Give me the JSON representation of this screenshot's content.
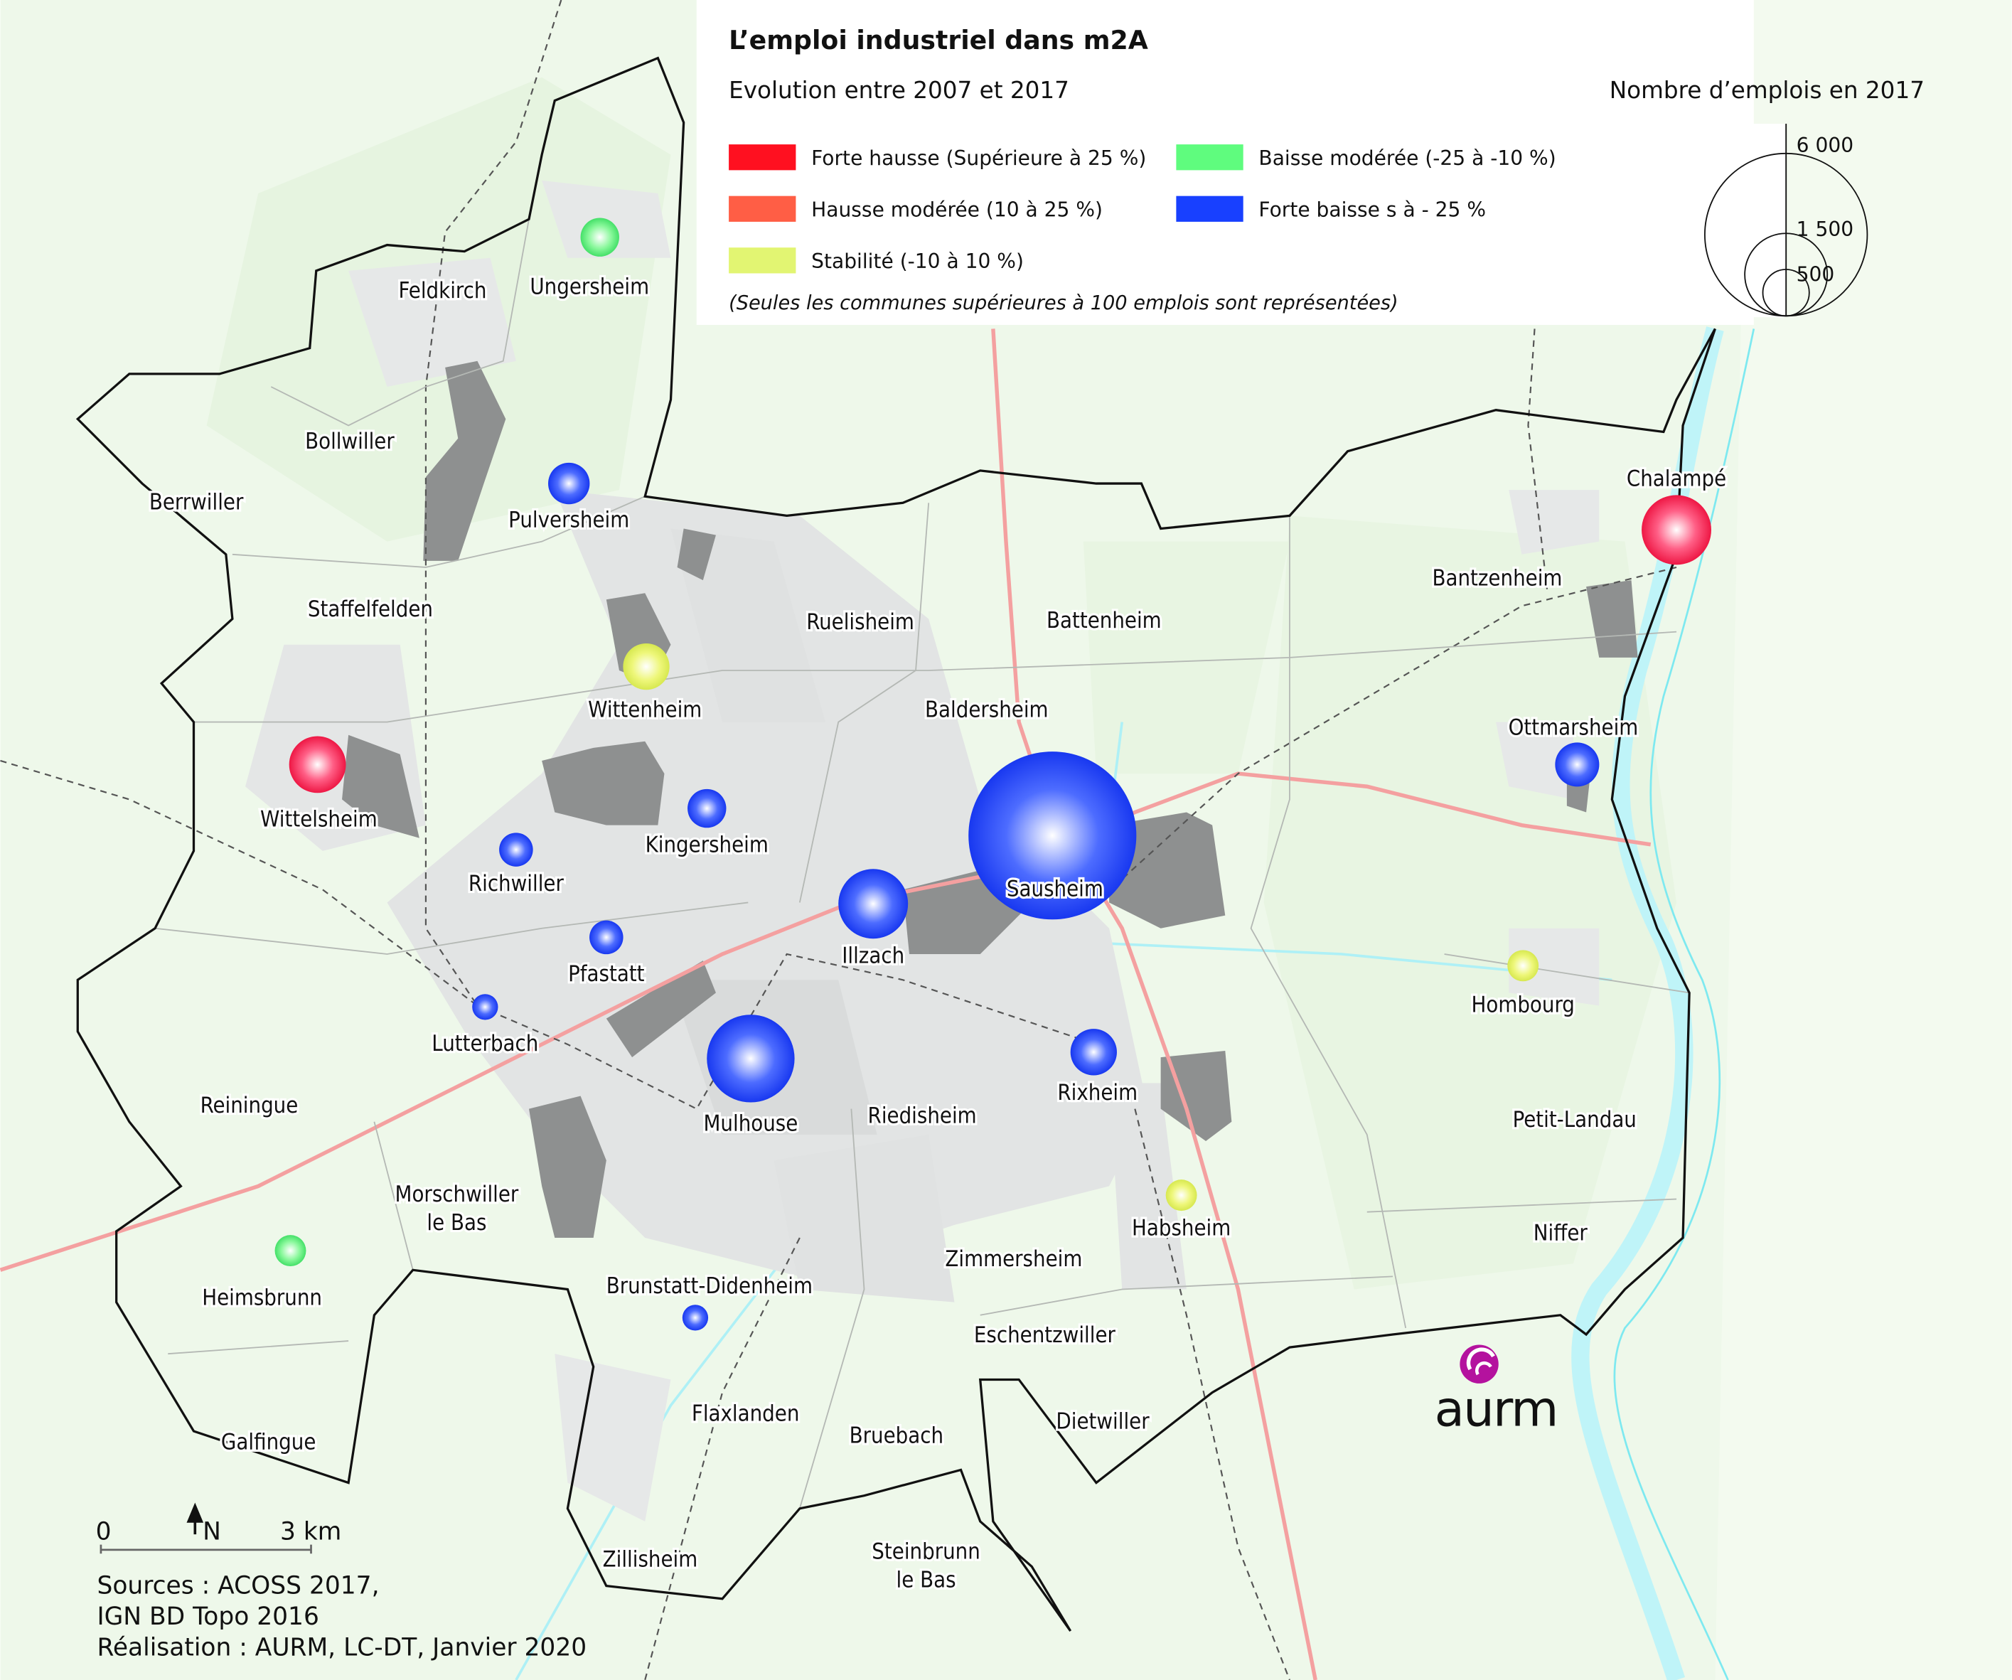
{
  "title": "L’emploi industriel dans m2A",
  "legend": {
    "color_title": "Evolution entre 2007 et 2017",
    "size_title": "Nombre d’emplois en 2017",
    "classes": [
      {
        "key": "forte_hausse",
        "label": "Forte hausse (Supérieure à 25 %)",
        "color": "#ff1020"
      },
      {
        "key": "hausse_moderee",
        "label": "Hausse modérée (10 à 25 %)",
        "color": "#ff5e45"
      },
      {
        "key": "stabilite",
        "label": "Stabilité (-10 à 10 %)",
        "color": "#e2f572"
      },
      {
        "key": "baisse_moderee",
        "label": "Baisse modérée (-25 à -10 %)",
        "color": "#5ffc7e"
      },
      {
        "key": "forte_baisse",
        "label": "Forte baisse s à - 25 %",
        "color": "#1840ff"
      }
    ],
    "note": "(Seules les communes supérieures à 100 emplois sont représentées)",
    "size_values": [
      "6 000",
      "1 500",
      "500"
    ]
  },
  "bubbles": [
    {
      "name": "Sausheim",
      "emplois": 6400,
      "class": "forte_baisse"
    },
    {
      "name": "Mulhouse",
      "emplois": 1750,
      "class": "forte_baisse"
    },
    {
      "name": "Illzach",
      "emplois": 1100,
      "class": "forte_baisse"
    },
    {
      "name": "Chalampé",
      "emplois": 1100,
      "class": "forte_hausse"
    },
    {
      "name": "Wittelsheim",
      "emplois": 730,
      "class": "forte_hausse"
    },
    {
      "name": "Wittenheim",
      "emplois": 490,
      "class": "stabilite"
    },
    {
      "name": "Rixheim",
      "emplois": 490,
      "class": "forte_baisse"
    },
    {
      "name": "Ottmarsheim",
      "emplois": 440,
      "class": "forte_baisse"
    },
    {
      "name": "Pulversheim",
      "emplois": 390,
      "class": "forte_baisse"
    },
    {
      "name": "Kingersheim",
      "emplois": 340,
      "class": "forte_baisse"
    },
    {
      "name": "Ungersheim",
      "emplois": 340,
      "class": "baisse_moderee"
    },
    {
      "name": "Richwiller",
      "emplois": 260,
      "class": "forte_baisse"
    },
    {
      "name": "Pfastatt",
      "emplois": 260,
      "class": "forte_baisse"
    },
    {
      "name": "Heimsbrunn",
      "emplois": 220,
      "class": "baisse_moderee"
    },
    {
      "name": "Hombourg",
      "emplois": 220,
      "class": "stabilite"
    },
    {
      "name": "Habsheim",
      "emplois": 220,
      "class": "stabilite"
    },
    {
      "name": "Lutterbach",
      "emplois": 150,
      "class": "forte_baisse"
    },
    {
      "name": "Brunstatt-Didenheim",
      "emplois": 150,
      "class": "forte_baisse"
    }
  ],
  "communes": [
    "Feldkirch",
    "Ungersheim",
    "Bollwiller",
    "Berrwiller",
    "Pulversheim",
    "Staffelfelden",
    "Ruelisheim",
    "Battenheim",
    "Bantzenheim",
    "Chalampé",
    "Wittenheim",
    "Baldersheim",
    "Ottmarsheim",
    "Wittelsheim",
    "Kingersheim",
    "Richwiller",
    "Sausheim",
    "Illzach",
    "Pfastatt",
    "Hombourg",
    "Lutterbach",
    "Rixheim",
    "Reiningue",
    "Mulhouse",
    "Riedisheim",
    "Petit-Landau",
    "Morschwiller\nle Bas",
    "Habsheim",
    "Zimmersheim",
    "Niffer",
    "Heimsbrunn",
    "Brunstatt-Didenheim",
    "Eschentzwiller",
    "Flaxlanden",
    "Bruebach",
    "Dietwiller",
    "Galfingue",
    "Zillisheim",
    "Steinbrunn\nle Bas"
  ],
  "scale": {
    "start": "0",
    "north": "N",
    "end": "3 km"
  },
  "sources": {
    "line1": "Sources : ACOSS 2017,",
    "line2": "IGN BD Topo 2016",
    "line3": "Réalisation : AURM, LC-DT, Janvier 2020"
  },
  "logo": "aurm"
}
